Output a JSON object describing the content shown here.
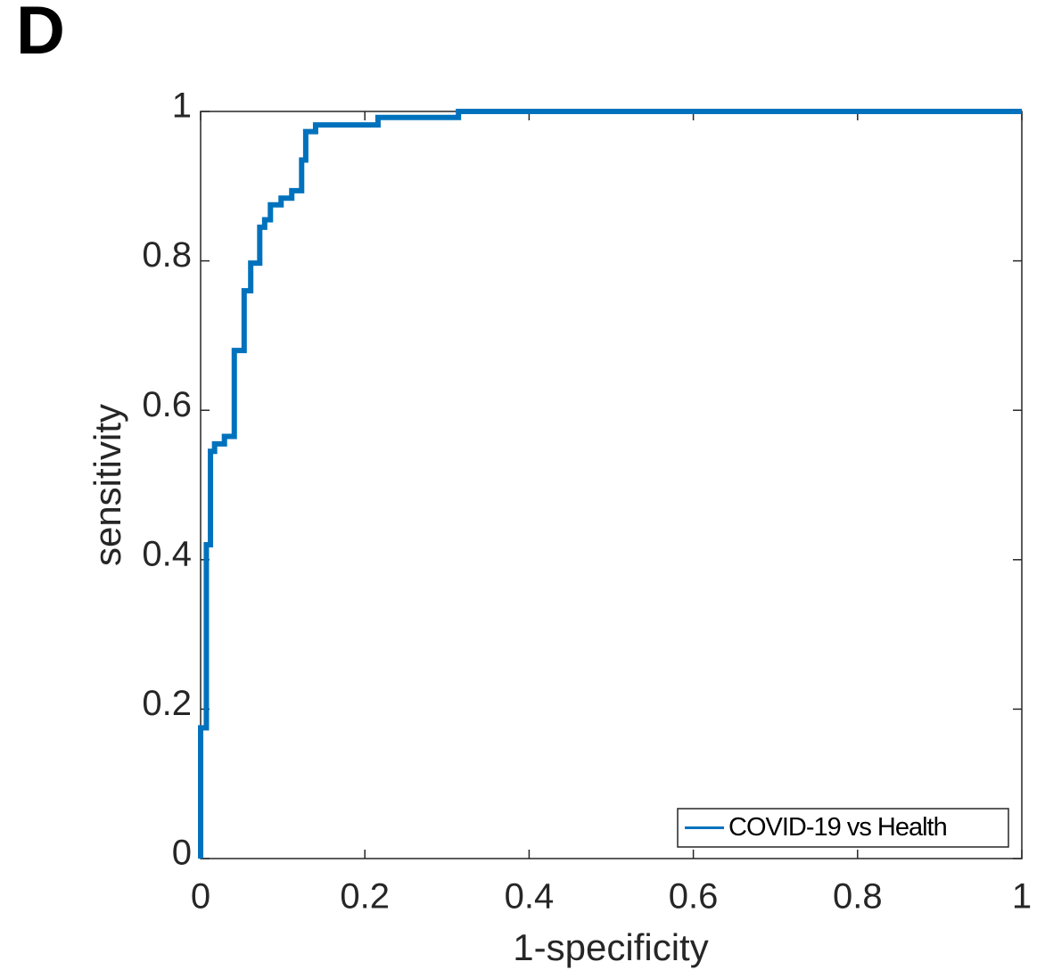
{
  "chart_data": {
    "type": "line",
    "panel_label": "D",
    "x_label": "1-specificity",
    "y_label": "sensitivity",
    "x": [
      0,
      0,
      0.007,
      0.007,
      0.012,
      0.012,
      0.017,
      0.017,
      0.029,
      0.029,
      0.041,
      0.041,
      0.053,
      0.053,
      0.061,
      0.061,
      0.072,
      0.072,
      0.078,
      0.078,
      0.085,
      0.085,
      0.098,
      0.098,
      0.111,
      0.111,
      0.123,
      0.123,
      0.128,
      0.128,
      0.14,
      0.14,
      0.216,
      0.216,
      0.314,
      0.314,
      1
    ],
    "series": [
      {
        "name": "COVID-19 vs Health",
        "color": "#0072bd",
        "values": [
          0,
          0.175,
          0.175,
          0.42,
          0.42,
          0.545,
          0.545,
          0.555,
          0.555,
          0.565,
          0.565,
          0.68,
          0.68,
          0.76,
          0.76,
          0.797,
          0.797,
          0.845,
          0.845,
          0.855,
          0.855,
          0.875,
          0.875,
          0.884,
          0.884,
          0.894,
          0.894,
          0.935,
          0.935,
          0.973,
          0.973,
          0.982,
          0.982,
          0.992,
          0.992,
          1,
          1
        ]
      }
    ],
    "xlim": [
      0,
      1
    ],
    "ylim": [
      0,
      1
    ],
    "xticks": [
      0,
      0.2,
      0.4,
      0.6,
      0.8,
      1
    ],
    "yticks": [
      0,
      0.2,
      0.4,
      0.6,
      0.8,
      1
    ],
    "legend": "lower right",
    "grid": false
  }
}
